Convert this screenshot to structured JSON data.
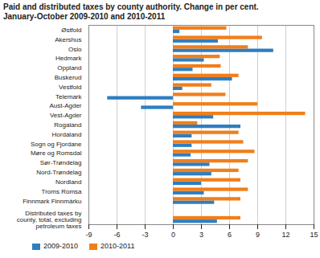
{
  "chart_data": {
    "type": "bar",
    "orientation": "horizontal",
    "title": "Paid and distributed taxes by county authority. Change in per cent.",
    "subtitle": "January-October  2009-2010 and 2010-2011",
    "categories": [
      "Østfold",
      "Akershus",
      "Oslo",
      "Hedmark",
      "Oppland",
      "Buskerud",
      "Vestfold",
      "Telemark",
      "Aust-Agder",
      "Vest-Agder",
      "Rogaland",
      "Hordaland",
      "Sogn og Fjordane",
      "Møre og Romsdal",
      "Sør-Trøndelag",
      "Nord-Trøndelag",
      "Nordland",
      "Troms Romsa",
      "Finnmark Finnmárku",
      null,
      "Distributed taxes by county, total, excluding petroleum taxes"
    ],
    "series": [
      {
        "name": "2009-2010",
        "color": "#2e7ec0",
        "values": [
          0.7,
          4.8,
          10.7,
          3.3,
          2.1,
          6.3,
          1.0,
          -7.0,
          -3.4,
          4.3,
          7.2,
          2.0,
          2.0,
          1.9,
          3.9,
          4.1,
          3.0,
          3.3,
          4.4,
          null,
          4.7
        ]
      },
      {
        "name": "2010-2011",
        "color": "#f07f1b",
        "values": [
          5.7,
          9.5,
          8.0,
          5.0,
          5.1,
          7.0,
          4.1,
          5.6,
          9.0,
          14.1,
          2.6,
          7.0,
          7.5,
          8.7,
          8.0,
          7.0,
          7.2,
          8.0,
          7.2,
          null,
          7.2
        ]
      }
    ],
    "xlim": [
      -9,
      15
    ],
    "xticks": [
      -9,
      -6,
      -3,
      0,
      3,
      6,
      9,
      12,
      15
    ],
    "grid": true,
    "legend": "bottom"
  }
}
